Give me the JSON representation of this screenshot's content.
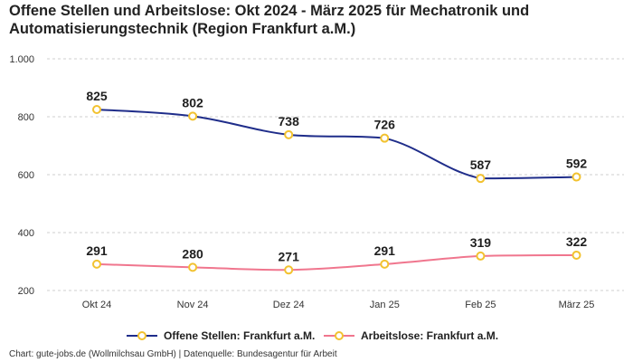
{
  "title": "Offene Stellen und Arbeitslose: Okt 2024 - März 2025 für Mechatronik und Automatisierungstechnik (Region Frankfurt a.M.)",
  "source": "Chart: gute-jobs.de (Wollmilchsau GmbH) | Datenquelle: Bundesagentur für Arbeit",
  "colors": {
    "offene": "#1f2d8a",
    "arbeitslose": "#f0768e",
    "marker": "#f2c230",
    "grid": "#cfcfcf"
  },
  "chart_data": {
    "type": "line",
    "title": "Offene Stellen und Arbeitslose: Okt 2024 - März 2025 für Mechatronik und Automatisierungstechnik (Region Frankfurt a.M.)",
    "xlabel": "",
    "ylabel": "",
    "categories": [
      "Okt 24",
      "Nov 24",
      "Dez 24",
      "Jan 25",
      "Feb 25",
      "März 25"
    ],
    "ylim": [
      200,
      1000
    ],
    "yticks": [
      200,
      400,
      600,
      800,
      1000
    ],
    "ytick_labels": [
      "200",
      "400",
      "600",
      "800",
      "1.000"
    ],
    "grid": true,
    "legend": "bottom",
    "series": [
      {
        "name": "Offene Stellen: Frankfurt a.M.",
        "values": [
          825,
          802,
          738,
          726,
          587,
          592
        ]
      },
      {
        "name": "Arbeitslose: Frankfurt a.M.",
        "values": [
          291,
          280,
          271,
          291,
          319,
          322
        ]
      }
    ]
  }
}
